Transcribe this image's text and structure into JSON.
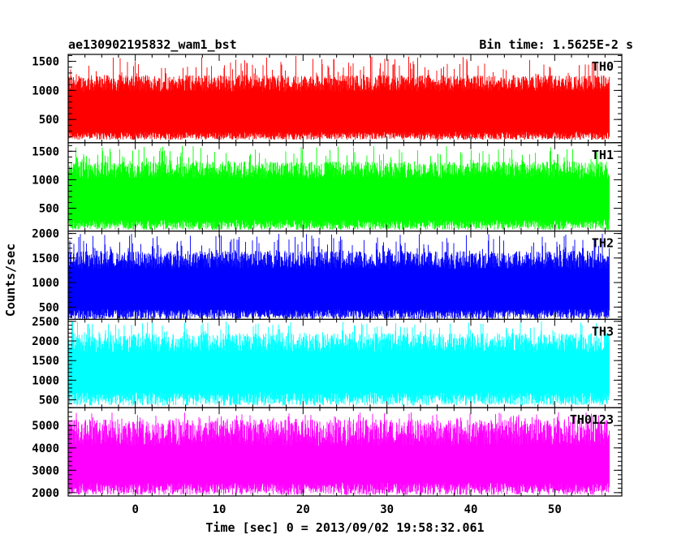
{
  "header": {
    "title": "ae130902195832_wam1_bst",
    "bin_time": "Bin time: 1.5625E-2 s"
  },
  "chart_data": {
    "type": "line",
    "ylabel": "Counts/sec",
    "xlabel": "Time [sec] 0 = 2013/09/02 19:58:32.061",
    "xlim": [
      -8,
      58
    ],
    "x_major_ticks": [
      0,
      10,
      20,
      30,
      40,
      50
    ],
    "x_range_data": [
      -8,
      56.5
    ],
    "bin_time_s": 0.015625,
    "grid": false,
    "panels": [
      {
        "name": "TH0",
        "color": "#ff0000",
        "ylim": [
          100,
          1620
        ],
        "y_ticks": [
          500,
          1000,
          1500
        ],
        "min_level": 150,
        "typical_low": 250,
        "mean": 700,
        "typical_high": 1150,
        "max_level": 1600
      },
      {
        "name": "TH1",
        "color": "#00ff00",
        "ylim": [
          100,
          1650
        ],
        "y_ticks": [
          500,
          1000,
          1500
        ],
        "min_level": 120,
        "typical_low": 250,
        "mean": 750,
        "typical_high": 1200,
        "max_level": 1600
      },
      {
        "name": "TH2",
        "color": "#0000ff",
        "ylim": [
          250,
          2050
        ],
        "y_ticks": [
          500,
          1000,
          1500,
          2000
        ],
        "min_level": 250,
        "typical_low": 400,
        "mean": 950,
        "typical_high": 1500,
        "max_level": 2000
      },
      {
        "name": "TH3",
        "color": "#00ffff",
        "ylim": [
          300,
          2550
        ],
        "y_ticks": [
          500,
          1000,
          1500,
          2000,
          2500
        ],
        "min_level": 350,
        "typical_low": 600,
        "mean": 1400,
        "typical_high": 2000,
        "max_level": 2500
      },
      {
        "name": "TH0123",
        "color": "#ff00ff",
        "ylim": [
          1850,
          5800
        ],
        "y_ticks": [
          2000,
          3000,
          4000,
          5000
        ],
        "min_level": 1900,
        "typical_low": 2300,
        "mean": 3500,
        "typical_high": 4800,
        "max_level": 5600
      }
    ]
  }
}
